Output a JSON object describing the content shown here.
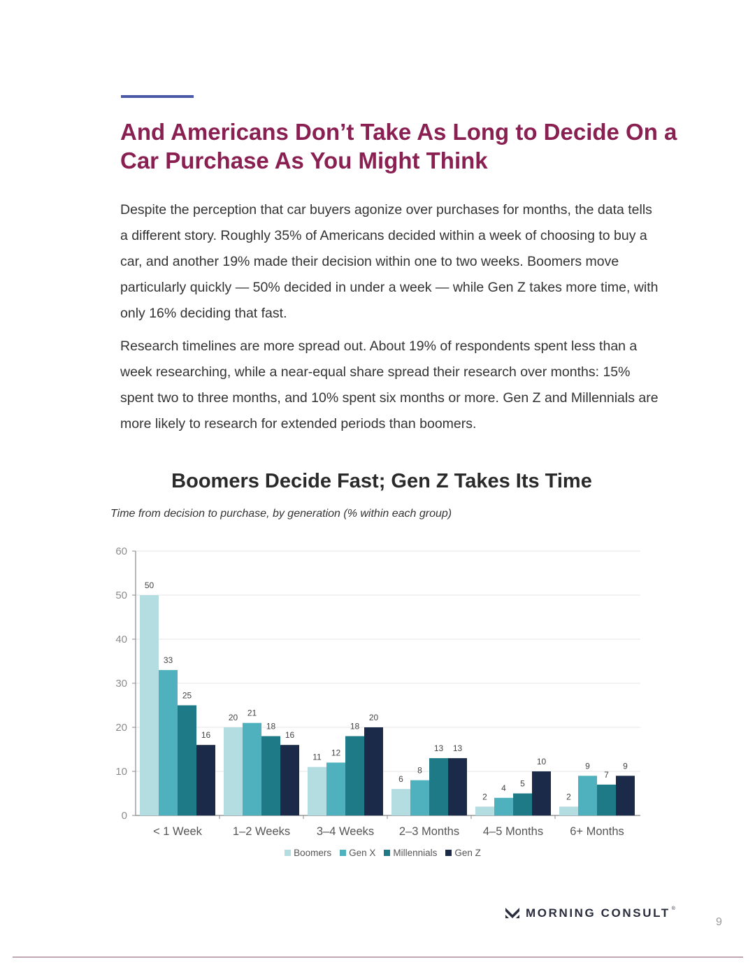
{
  "heading": "And Americans Don’t Take As Long to Decide On a Car Purchase As You Might Think",
  "paragraphs": [
    "Despite the perception that car buyers agonize over purchases for months, the data tells a different story. Roughly 35% of Americans decided within a week of choosing to buy a car, and another 19% made their decision within one to two weeks. Boomers move particularly quickly — 50% decided in under a week — while Gen Z takes more time, with only 16% deciding that fast.",
    "Research timelines are more spread out. About 19% of respondents spent less than a week researching, while a near-equal share spread their research over months: 15% spent two to three months, and 10% spent six months or more. Gen Z and Millennials are more likely to research for extended periods than boomers."
  ],
  "chart_data": {
    "type": "bar",
    "title": "Boomers Decide Fast; Gen Z Takes Its Time",
    "subtitle": "Time from decision to purchase, by generation (% within each group)",
    "categories": [
      "< 1 Week",
      "1–2 Weeks",
      "3–4 Weeks",
      "2–3 Months",
      "4–5 Months",
      "6+ Months"
    ],
    "series": [
      {
        "name": "Boomers",
        "color": "#b3dde0",
        "values": [
          50,
          20,
          11,
          6,
          2,
          2
        ]
      },
      {
        "name": "Gen X",
        "color": "#4fb0be",
        "values": [
          33,
          21,
          12,
          8,
          4,
          9
        ]
      },
      {
        "name": "Millennials",
        "color": "#1d7a86",
        "values": [
          25,
          18,
          18,
          13,
          5,
          7
        ]
      },
      {
        "name": "Gen Z",
        "color": "#1b2a48",
        "values": [
          16,
          16,
          20,
          13,
          10,
          9
        ]
      }
    ],
    "yticks": [
      0,
      10,
      20,
      30,
      40,
      50,
      60
    ],
    "ylim": [
      0,
      60
    ],
    "grid": true,
    "legend_position": "bottom-center",
    "data_labels": true
  },
  "footer": {
    "brand": "MORNING CONSULT",
    "brand_mark": "®",
    "page_number": "9"
  },
  "colors": {
    "heading": "#8a1f52",
    "accent_rule": "#4a5aa8"
  }
}
